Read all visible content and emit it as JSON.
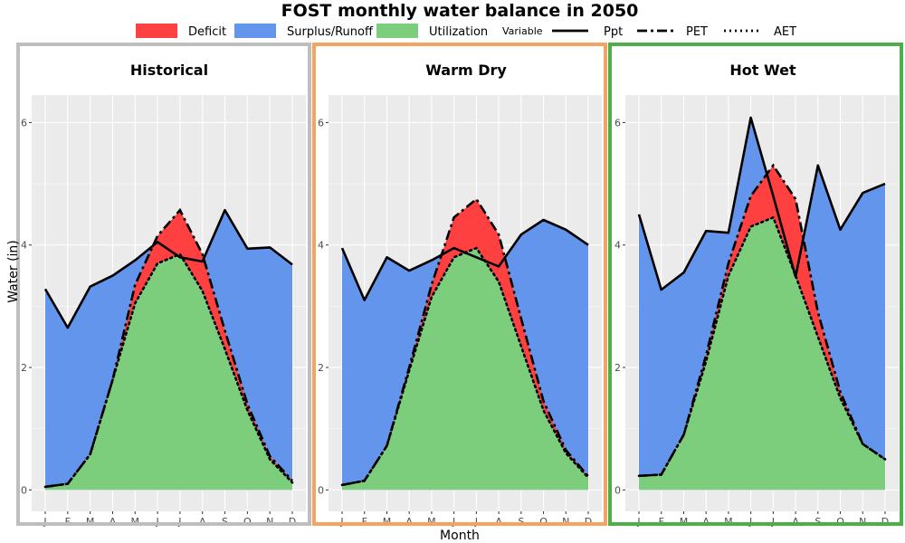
{
  "colors": {
    "deficit": "#ff4040",
    "surplus": "#6495ed",
    "utilization": "#7ccd7c",
    "panel_bg": "#ebebeb",
    "grid": "#ffffff",
    "line": "#000000"
  },
  "legend": {
    "area_entries": [
      {
        "key": "deficit",
        "label": "Deficit",
        "color": "#ff4040"
      },
      {
        "key": "surplus",
        "label": "Surplus/Runoff",
        "color": "#6495ed"
      },
      {
        "key": "utilization",
        "label": "Utilization",
        "color": "#7ccd7c"
      }
    ],
    "line_title": "Variable",
    "line_entries": [
      {
        "key": "ppt",
        "label": "Ppt",
        "dash": "solid"
      },
      {
        "key": "pet",
        "label": "PET",
        "dash": "longdash"
      },
      {
        "key": "aet",
        "label": "AET",
        "dash": "dotted"
      }
    ]
  },
  "chart_data": {
    "type": "area",
    "title": "FOST monthly water balance in 2050",
    "xlabel": "Month",
    "ylabel": "Water (in)",
    "categories": [
      "J",
      "F",
      "M",
      "A",
      "M",
      "J",
      "J",
      "A",
      "S",
      "O",
      "N",
      "D"
    ],
    "ylim": [
      -0.35,
      6.45
    ],
    "yticks": [
      0,
      2,
      4,
      6
    ],
    "grid": true,
    "legend_position": "top",
    "panels": [
      {
        "name": "Historical",
        "border_color": "#bebebe",
        "series": [
          {
            "name": "Ppt",
            "values": [
              3.28,
              2.65,
              3.32,
              3.5,
              3.75,
              4.05,
              3.8,
              3.73,
              4.57,
              3.94,
              3.96,
              3.68
            ]
          },
          {
            "name": "PET",
            "values": [
              0.05,
              0.1,
              0.58,
              1.8,
              3.35,
              4.15,
              4.57,
              3.85,
              2.6,
              1.4,
              0.55,
              0.15
            ]
          },
          {
            "name": "AET",
            "values": [
              0.05,
              0.1,
              0.58,
              1.8,
              3.05,
              3.7,
              3.85,
              3.25,
              2.3,
              1.3,
              0.5,
              0.12
            ]
          }
        ]
      },
      {
        "name": "Warm Dry",
        "border_color": "#f4a460",
        "series": [
          {
            "name": "Ppt",
            "values": [
              3.95,
              3.1,
              3.8,
              3.58,
              3.75,
              3.95,
              3.8,
              3.65,
              4.17,
              4.41,
              4.25,
              4.0
            ]
          },
          {
            "name": "PET",
            "values": [
              0.08,
              0.15,
              0.72,
              2.0,
              3.35,
              4.45,
              4.75,
              4.17,
              2.8,
              1.45,
              0.65,
              0.22
            ]
          },
          {
            "name": "AET",
            "values": [
              0.08,
              0.15,
              0.72,
              1.95,
              3.15,
              3.8,
              3.95,
              3.4,
              2.35,
              1.3,
              0.6,
              0.2
            ]
          }
        ]
      },
      {
        "name": "Hot Wet",
        "border_color": "#4daf4a",
        "series": [
          {
            "name": "Ppt",
            "values": [
              4.5,
              3.27,
              3.55,
              4.23,
              4.2,
              6.08,
              4.8,
              3.48,
              5.3,
              4.25,
              4.85,
              5.0
            ]
          },
          {
            "name": "PET",
            "values": [
              0.23,
              0.25,
              0.9,
              2.2,
              3.7,
              4.8,
              5.3,
              4.75,
              2.9,
              1.6,
              0.75,
              0.5
            ]
          },
          {
            "name": "AET",
            "values": [
              0.23,
              0.25,
              0.9,
              2.1,
              3.5,
              4.3,
              4.45,
              3.5,
              2.5,
              1.5,
              0.75,
              0.5
            ]
          }
        ]
      }
    ]
  }
}
